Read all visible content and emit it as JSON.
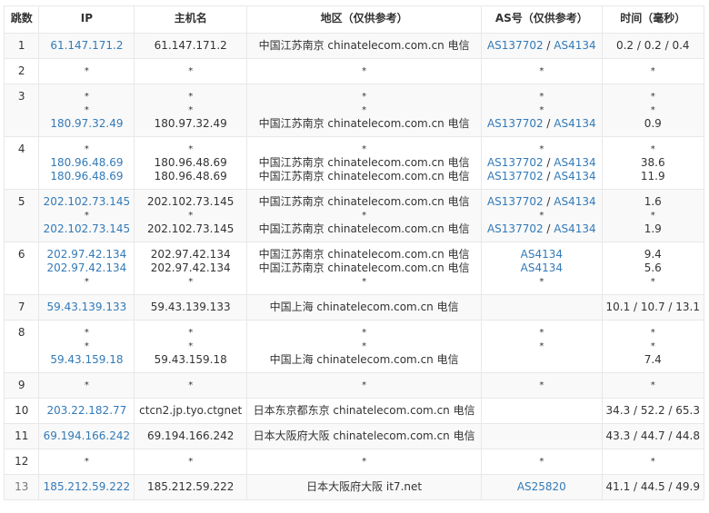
{
  "headers": [
    "跳数",
    "IP",
    "主机名",
    "地区（仅供参考）",
    "AS号（仅供参考）",
    "时间（毫秒）"
  ],
  "colors": {
    "link": "#337ab7",
    "text": "#333333",
    "row_alt": "#f9f9f9",
    "border": "#e8e8e8"
  },
  "rows": [
    {
      "hop": "1",
      "ip": [
        "61.147.171.2"
      ],
      "host": [
        "61.147.171.2"
      ],
      "region": [
        "中国江苏南京 chinatelecom.com.cn 电信"
      ],
      "as": [
        [
          "AS137702",
          "AS4134"
        ]
      ],
      "time": [
        "0.2 / 0.2 / 0.4"
      ]
    },
    {
      "hop": "2",
      "ip": [
        "*"
      ],
      "host": [
        "*"
      ],
      "region": [
        "*"
      ],
      "as": [
        "*"
      ],
      "time": [
        "*"
      ]
    },
    {
      "hop": "3",
      "ip": [
        "*",
        "*",
        "180.97.32.49"
      ],
      "host": [
        "*",
        "*",
        "180.97.32.49"
      ],
      "region": [
        "*",
        "*",
        "中国江苏南京 chinatelecom.com.cn 电信"
      ],
      "as": [
        "*",
        "*",
        [
          "AS137702",
          "AS4134"
        ]
      ],
      "time": [
        "*",
        "*",
        "0.9"
      ]
    },
    {
      "hop": "4",
      "ip": [
        "*",
        "180.96.48.69",
        "180.96.48.69"
      ],
      "host": [
        "*",
        "180.96.48.69",
        "180.96.48.69"
      ],
      "region": [
        "*",
        "中国江苏南京 chinatelecom.com.cn 电信",
        "中国江苏南京 chinatelecom.com.cn 电信"
      ],
      "as": [
        "*",
        [
          "AS137702",
          "AS4134"
        ],
        [
          "AS137702",
          "AS4134"
        ]
      ],
      "time": [
        "*",
        "38.6",
        "11.9"
      ]
    },
    {
      "hop": "5",
      "ip": [
        "202.102.73.145",
        "*",
        "202.102.73.145"
      ],
      "host": [
        "202.102.73.145",
        "*",
        "202.102.73.145"
      ],
      "region": [
        "中国江苏南京 chinatelecom.com.cn 电信",
        "*",
        "中国江苏南京 chinatelecom.com.cn 电信"
      ],
      "as": [
        [
          "AS137702",
          "AS4134"
        ],
        "*",
        [
          "AS137702",
          "AS4134"
        ]
      ],
      "time": [
        "1.6",
        "*",
        "1.9"
      ]
    },
    {
      "hop": "6",
      "ip": [
        "202.97.42.134",
        "202.97.42.134",
        "*"
      ],
      "host": [
        "202.97.42.134",
        "202.97.42.134",
        "*"
      ],
      "region": [
        "中国江苏南京 chinatelecom.com.cn 电信",
        "中国江苏南京 chinatelecom.com.cn 电信",
        "*"
      ],
      "as": [
        [
          "AS4134"
        ],
        [
          "AS4134"
        ],
        "*"
      ],
      "time": [
        "9.4",
        "5.6",
        "*"
      ]
    },
    {
      "hop": "7",
      "ip": [
        "59.43.139.133"
      ],
      "host": [
        "59.43.139.133"
      ],
      "region": [
        "中国上海 chinatelecom.com.cn 电信"
      ],
      "as": [
        ""
      ],
      "time": [
        "10.1 / 10.7 / 13.1"
      ]
    },
    {
      "hop": "8",
      "ip": [
        "*",
        "*",
        "59.43.159.18"
      ],
      "host": [
        "*",
        "*",
        "59.43.159.18"
      ],
      "region": [
        "*",
        "*",
        "中国上海 chinatelecom.com.cn 电信"
      ],
      "as": [
        "*",
        "*",
        ""
      ],
      "time": [
        "*",
        "*",
        "7.4"
      ]
    },
    {
      "hop": "9",
      "ip": [
        "*"
      ],
      "host": [
        "*"
      ],
      "region": [
        "*"
      ],
      "as": [
        "*"
      ],
      "time": [
        "*"
      ]
    },
    {
      "hop": "10",
      "ip": [
        "203.22.182.77"
      ],
      "host": [
        "ctcn2.jp.tyo.ctgnet"
      ],
      "region": [
        "日本东京都东京 chinatelecom.com.cn 电信"
      ],
      "as": [
        ""
      ],
      "time": [
        "34.3 / 52.2 / 65.3"
      ]
    },
    {
      "hop": "11",
      "ip": [
        "69.194.166.242"
      ],
      "host": [
        "69.194.166.242"
      ],
      "region": [
        "日本大阪府大阪 chinatelecom.com.cn 电信"
      ],
      "as": [
        ""
      ],
      "time": [
        "43.3 / 44.7 / 44.8"
      ]
    },
    {
      "hop": "12",
      "ip": [
        "*"
      ],
      "host": [
        "*"
      ],
      "region": [
        "*"
      ],
      "as": [
        "*"
      ],
      "time": [
        "*"
      ]
    },
    {
      "hop": "13",
      "ip": [
        "185.212.59.222"
      ],
      "host": [
        "185.212.59.222"
      ],
      "region": [
        "日本大阪府大阪 it7.net"
      ],
      "as": [
        [
          "AS25820"
        ]
      ],
      "time": [
        "41.1 / 44.5 / 49.9"
      ]
    }
  ]
}
